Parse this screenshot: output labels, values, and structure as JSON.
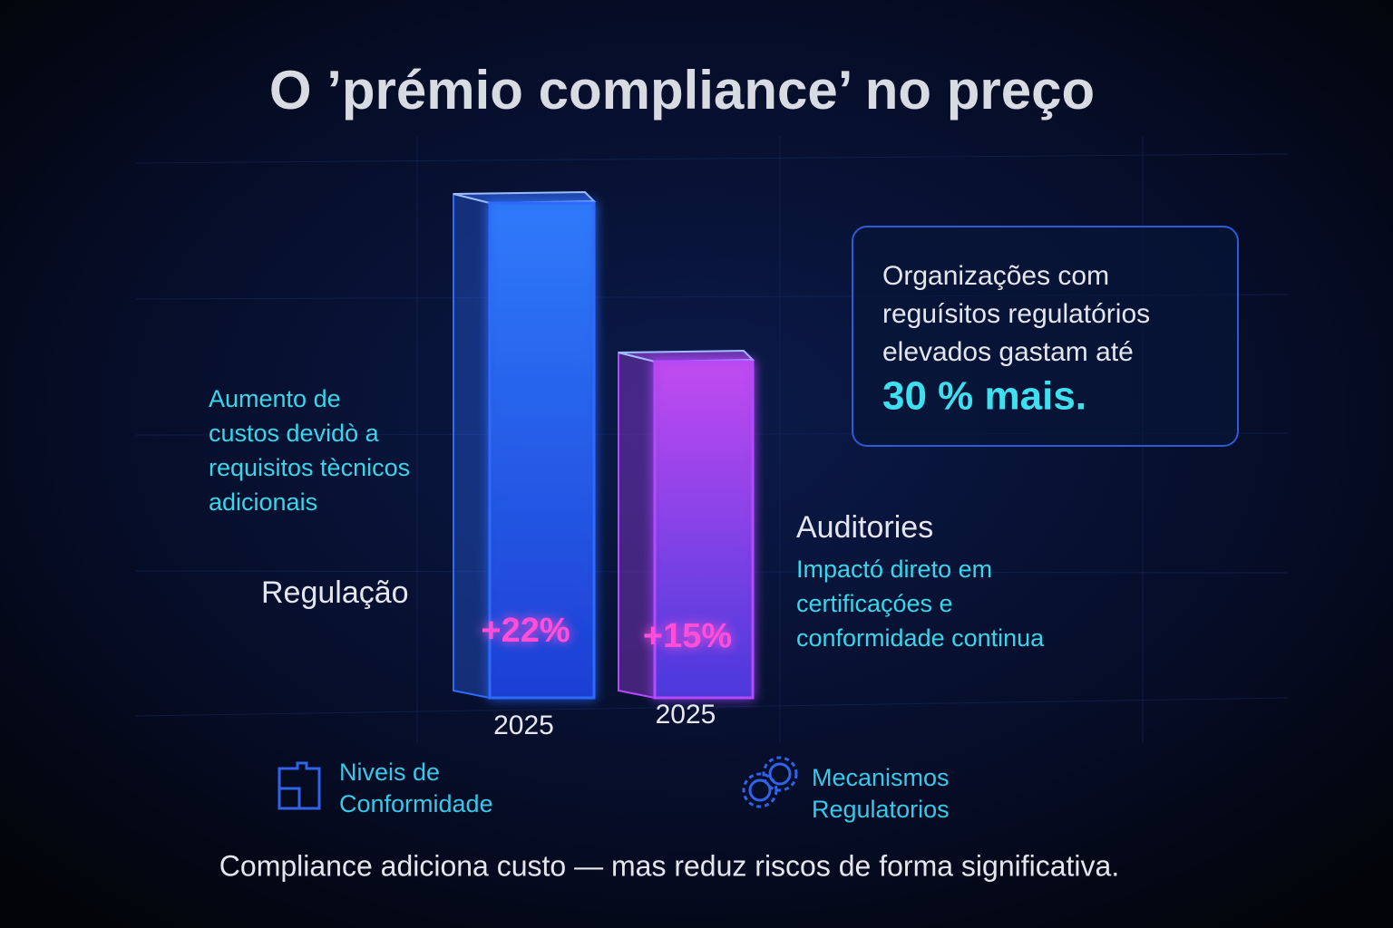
{
  "chart_data": {
    "type": "bar",
    "title": "O ’prémio compliance’ no preço",
    "categories": [
      "2025",
      "2025"
    ],
    "values": [
      22,
      15
    ],
    "value_labels": [
      "+22%",
      "+15%"
    ],
    "colors": [
      "#2f6bff",
      "#b548ff"
    ],
    "label_color": "#ff4fd8",
    "annotations": [
      {
        "heading": "Regulação",
        "lines": [
          "Aumento de",
          "custos devidò a",
          "requisitos tècnicos",
          "adicionais"
        ]
      },
      {
        "heading": "Auditories",
        "lines": [
          "Impactó direto em",
          "certificaçóes e",
          "conformidade continua"
        ]
      }
    ],
    "callout": {
      "lines": [
        "Organizações com",
        "reguísitos regulatórios",
        "elevados gastam até"
      ],
      "highlight": "30 % mais."
    },
    "legend": [
      {
        "lines": [
          "Niveis de",
          "Conformidade"
        ]
      },
      {
        "lines": [
          "Mecanismos",
          "Regulatorios"
        ]
      }
    ],
    "footer": "Compliance adiciona custo — mas reduz riscos de forma significativa."
  }
}
